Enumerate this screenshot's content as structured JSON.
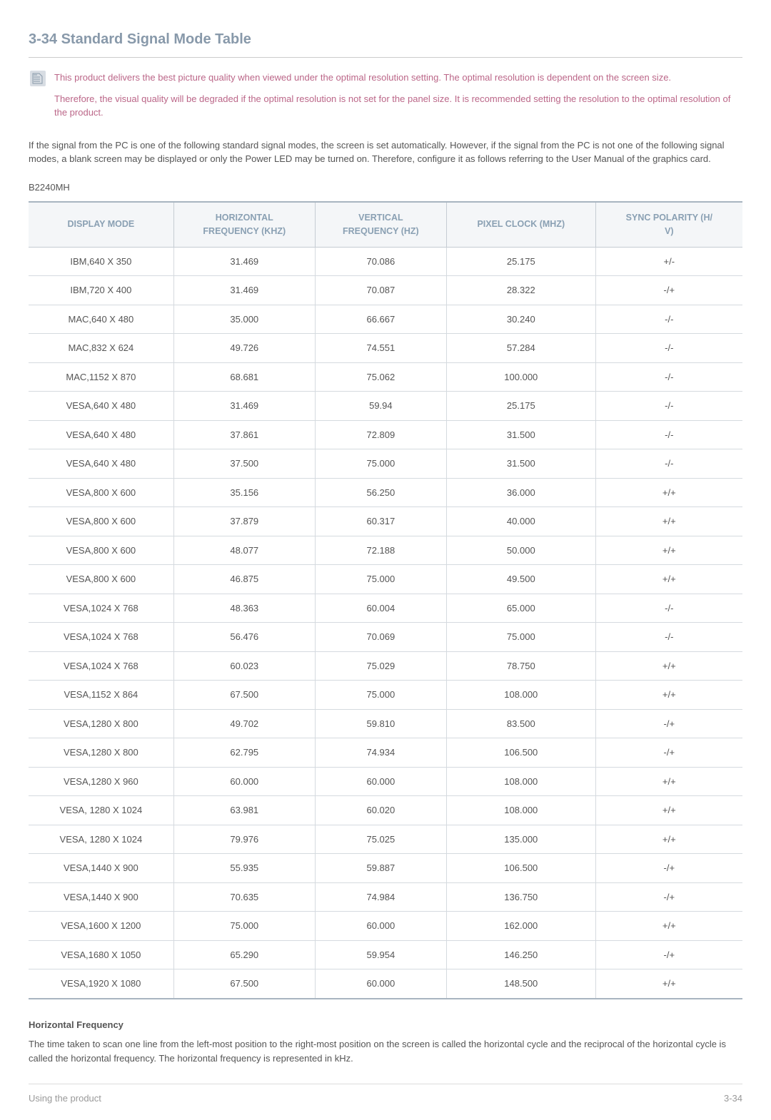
{
  "heading": "3-34  Standard Signal Mode Table",
  "note": {
    "p1": "This product delivers the best picture quality when viewed under the optimal resolution setting. The optimal resolution is dependent on the screen size.",
    "p2": "Therefore, the visual quality will be degraded if the optimal resolution is not set for the panel size. It is recommended setting the resolution to the optimal resolution of the product."
  },
  "intro": "If the signal from the PC is one of the following standard signal modes, the screen is set automatically. However, if the signal from the PC is not one of the following signal modes, a blank screen may be displayed or only the Power LED may be turned on. Therefore, configure it as follows referring to the User Manual of the graphics card.",
  "model": "B2240MH",
  "table": {
    "columns": [
      "DISPLAY MODE",
      "HORIZONTAL FREQUENCY (KHZ)",
      "VERTICAL FREQUENCY (HZ)",
      "PIXEL CLOCK (MHZ)",
      "SYNC POLARITY (H/V)"
    ],
    "rows": [
      [
        "IBM,640 X 350",
        "31.469",
        "70.086",
        "25.175",
        "+/-"
      ],
      [
        "IBM,720 X 400",
        "31.469",
        "70.087",
        "28.322",
        "-/+"
      ],
      [
        "MAC,640 X 480",
        "35.000",
        "66.667",
        "30.240",
        "-/-"
      ],
      [
        "MAC,832 X 624",
        "49.726",
        "74.551",
        "57.284",
        "-/-"
      ],
      [
        "MAC,1152 X 870",
        "68.681",
        "75.062",
        "100.000",
        "-/-"
      ],
      [
        "VESA,640 X 480",
        "31.469",
        "59.94",
        "25.175",
        "-/-"
      ],
      [
        "VESA,640 X 480",
        "37.861",
        "72.809",
        "31.500",
        "-/-"
      ],
      [
        "VESA,640 X 480",
        "37.500",
        "75.000",
        "31.500",
        "-/-"
      ],
      [
        "VESA,800 X 600",
        "35.156",
        "56.250",
        "36.000",
        "+/+"
      ],
      [
        "VESA,800 X 600",
        "37.879",
        "60.317",
        "40.000",
        "+/+"
      ],
      [
        "VESA,800 X 600",
        "48.077",
        "72.188",
        "50.000",
        "+/+"
      ],
      [
        "VESA,800 X 600",
        "46.875",
        "75.000",
        "49.500",
        "+/+"
      ],
      [
        "VESA,1024 X 768",
        "48.363",
        "60.004",
        "65.000",
        "-/-"
      ],
      [
        "VESA,1024 X 768",
        "56.476",
        "70.069",
        "75.000",
        "-/-"
      ],
      [
        "VESA,1024 X 768",
        "60.023",
        "75.029",
        "78.750",
        "+/+"
      ],
      [
        "VESA,1152 X 864",
        "67.500",
        "75.000",
        "108.000",
        "+/+"
      ],
      [
        "VESA,1280 X 800",
        "49.702",
        "59.810",
        "83.500",
        "-/+"
      ],
      [
        "VESA,1280 X 800",
        "62.795",
        "74.934",
        "106.500",
        "-/+"
      ],
      [
        "VESA,1280 X 960",
        "60.000",
        "60.000",
        "108.000",
        "+/+"
      ],
      [
        "VESA, 1280 X 1024",
        "63.981",
        "60.020",
        "108.000",
        "+/+"
      ],
      [
        "VESA, 1280 X 1024",
        "79.976",
        "75.025",
        "135.000",
        "+/+"
      ],
      [
        "VESA,1440 X 900",
        "55.935",
        "59.887",
        "106.500",
        "-/+"
      ],
      [
        "VESA,1440 X 900",
        "70.635",
        "74.984",
        "136.750",
        "-/+"
      ],
      [
        "VESA,1600 X 1200",
        "75.000",
        "60.000",
        "162.000",
        "+/+"
      ],
      [
        "VESA,1680 X 1050",
        "65.290",
        "59.954",
        "146.250",
        "-/+"
      ],
      [
        "VESA,1920 X 1080",
        "67.500",
        "60.000",
        "148.500",
        "+/+"
      ]
    ]
  },
  "hf_heading": "Horizontal Frequency",
  "hf_text": "The time taken to scan one line from the left-most position to the right-most position on the screen is called the horizontal cycle and the reciprocal of the horizontal cycle is called the horizontal frequency. The horizontal frequency is represented in kHz.",
  "footer_left": "Using the product",
  "footer_right": "3-34",
  "colors": {
    "heading": "#8899aa",
    "note_text": "#bb6688",
    "th_text": "#8aa0b3",
    "th_bg": "#f4f6f8",
    "border": "#c5ccd3",
    "table_border": "#a8b4c0"
  }
}
